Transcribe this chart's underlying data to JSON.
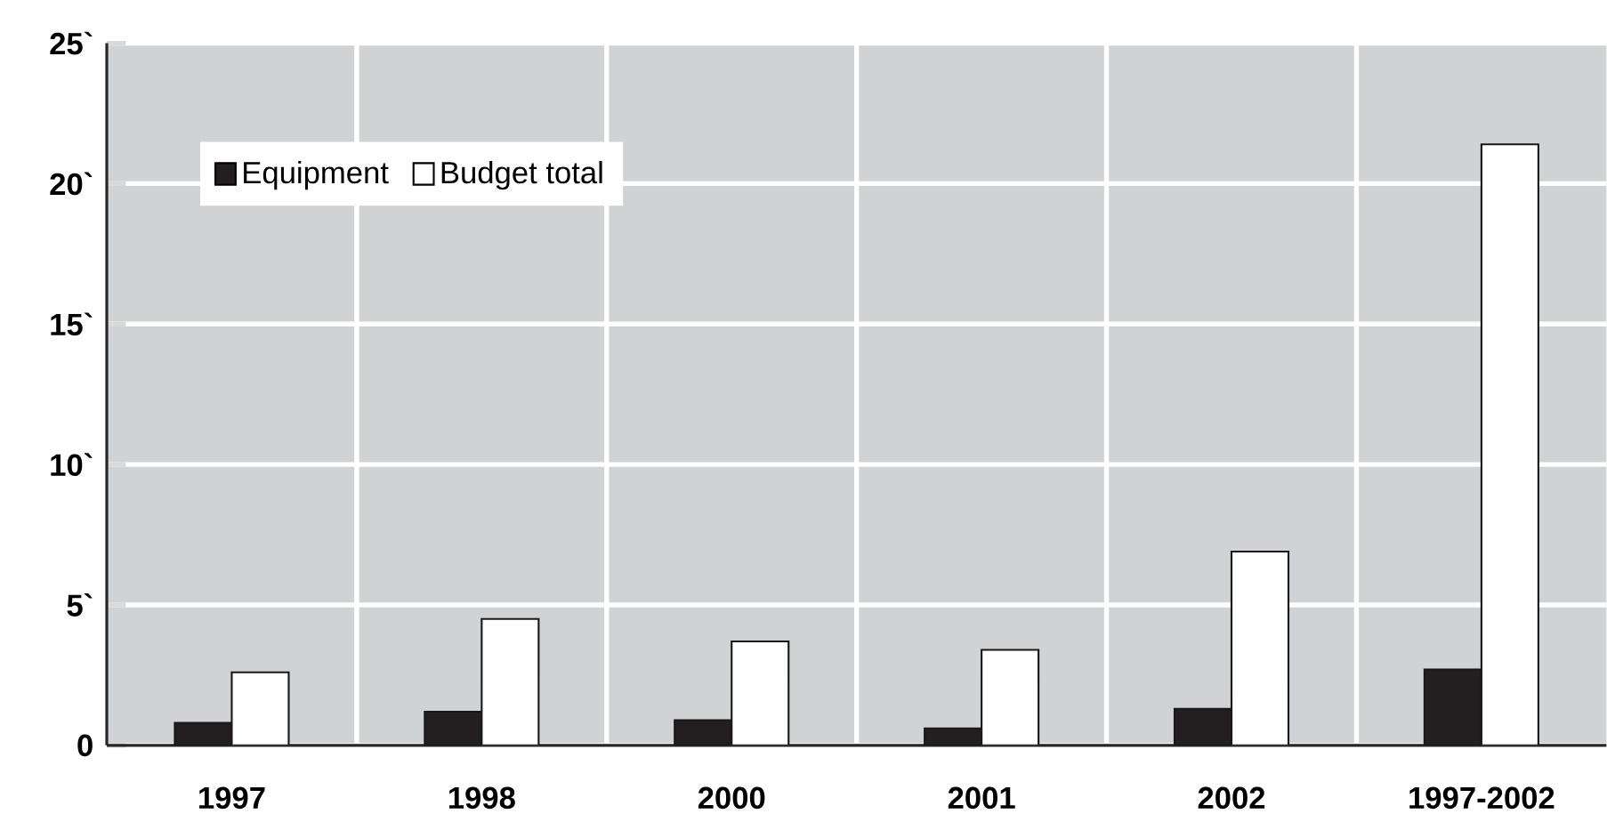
{
  "chart_data": {
    "type": "bar",
    "categories": [
      "1997",
      "1998",
      "2000",
      "2001",
      "2002",
      "1997-2002"
    ],
    "series": [
      {
        "name": "Equipment",
        "color": "#231f20",
        "values": [
          0.8,
          1.2,
          0.9,
          0.6,
          1.3,
          2.7
        ]
      },
      {
        "name": "Budget total",
        "color": "#ffffff",
        "values": [
          2.6,
          4.5,
          3.7,
          3.4,
          6.9,
          21.4
        ]
      }
    ],
    "ylim": [
      0,
      25
    ],
    "yticks": [
      0,
      {
        "value": 5,
        "label": "5`"
      },
      {
        "value": 10,
        "label": "10`"
      },
      {
        "value": 15,
        "label": "15`"
      },
      {
        "value": 20,
        "label": "20`"
      },
      {
        "value": 25,
        "label": "25`"
      }
    ],
    "grid": true,
    "legend": "top left"
  }
}
